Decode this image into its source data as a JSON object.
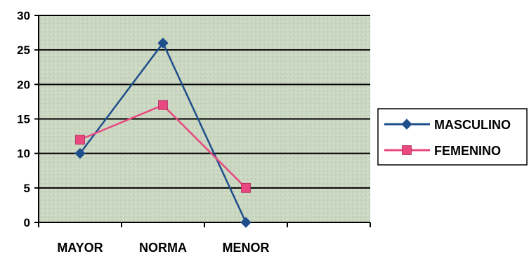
{
  "chart_data": {
    "type": "line",
    "categories": [
      "MAYOR",
      "NORMA",
      "MENOR"
    ],
    "ylim": [
      0,
      30
    ],
    "yticks": [
      0,
      5,
      10,
      15,
      20,
      25,
      30
    ],
    "grid": true,
    "legend_position": "right",
    "plot_background": "#c9d6c0",
    "series": [
      {
        "name": "MASCULINO",
        "values": [
          10,
          26,
          0
        ],
        "color": "#1f4e8c",
        "marker": "diamond"
      },
      {
        "name": "FEMENINO",
        "values": [
          12,
          17,
          5
        ],
        "color": "#e8487f",
        "marker": "square"
      }
    ]
  }
}
